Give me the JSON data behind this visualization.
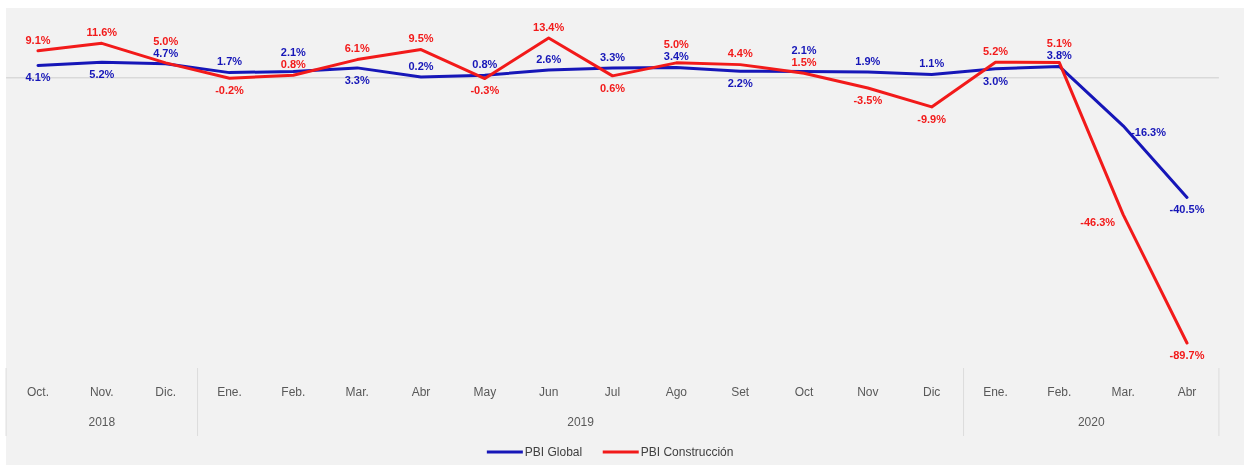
{
  "chart_data": {
    "type": "line",
    "categories": [
      "Oct.",
      "Nov.",
      "Dic.",
      "Ene.",
      "Feb.",
      "Mar.",
      "Abr",
      "May",
      "Jun",
      "Jul",
      "Ago",
      "Set",
      "Oct",
      "Nov",
      "Dic",
      "Ene.",
      "Feb.",
      "Mar.",
      "Abr"
    ],
    "series": [
      {
        "name": "PBI Global",
        "color": "#1616b8",
        "values": [
          4.1,
          5.2,
          4.7,
          1.7,
          2.1,
          3.3,
          0.2,
          0.8,
          2.6,
          3.3,
          3.4,
          2.2,
          2.1,
          1.9,
          1.1,
          3.0,
          3.8,
          -16.3,
          -40.5
        ],
        "value_labels": [
          "4.1%",
          "5.2%",
          "4.7%",
          "1.7%",
          "2.1%",
          "3.3%",
          "0.2%",
          "0.8%",
          "2.6%",
          "3.3%",
          "3.4%",
          "2.2%",
          "2.1%",
          "1.9%",
          "1.1%",
          "3.0%",
          "3.8%",
          "-16.3%",
          "-40.5%"
        ]
      },
      {
        "name": "PBI Construcción",
        "color": "#f21a1a",
        "values": [
          9.1,
          11.6,
          5.0,
          -0.2,
          0.8,
          6.1,
          9.5,
          -0.3,
          13.4,
          0.6,
          5.0,
          4.4,
          1.5,
          -3.5,
          -9.9,
          5.2,
          5.1,
          -46.3,
          -89.7
        ],
        "value_labels": [
          "9.1%",
          "11.6%",
          "5.0%",
          "-0.2%",
          "0.8%",
          "6.1%",
          "9.5%",
          "-0.3%",
          "13.4%",
          "0.6%",
          "5.0%",
          "4.4%",
          "1.5%",
          "-3.5%",
          "-9.9%",
          "5.2%",
          "5.1%",
          "-46.3%",
          "-89.7%"
        ]
      }
    ],
    "annotations": [
      "2018",
      "2019",
      "2020"
    ],
    "legend": "bottom"
  }
}
